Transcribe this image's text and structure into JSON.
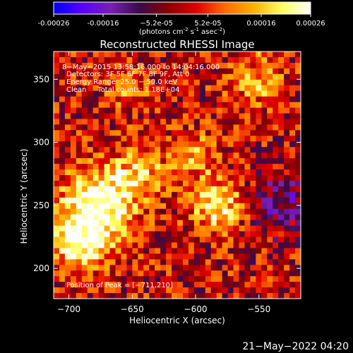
{
  "colorbar": {
    "tick_labels": [
      "-0.00026",
      "-0.00016",
      "−5.2e-05",
      "5.2e-05",
      "0.00016",
      "0.00026"
    ],
    "tick_values": [
      -0.00026,
      -0.00016,
      -5.2e-05,
      5.2e-05,
      0.00016,
      0.00026
    ],
    "range": [
      -0.00026,
      0.00026
    ],
    "unit_prefix": "(photons cm",
    "unit_exp1": "-2",
    "unit_mid": " s",
    "unit_exp2": "-1",
    "unit_suffix": " asec",
    "unit_exp3": "-2",
    "unit_close": ")",
    "colors": [
      "#0000ff",
      "#5a00ff",
      "#7a1fb0",
      "#3a0a4a",
      "#8b0000",
      "#e00000",
      "#ff6a00",
      "#ffb000",
      "#ffff60",
      "#ffffff"
    ]
  },
  "chart_data": {
    "type": "heatmap",
    "title": "Reconstructed RHESSI Image",
    "xlabel": "Heliocentric X (arcsec)",
    "ylabel": "Heliocentric Y (arcsec)",
    "xlim": [
      -712,
      -517
    ],
    "ylim": [
      176,
      372
    ],
    "x_ticks": [
      -700,
      -650,
      -600,
      -550
    ],
    "y_ticks": [
      200,
      250,
      300,
      350
    ],
    "annotations": [
      "8−May−2015 13:58:16.000 to 14:04:16.000",
      "Detectors: 3F 5F 6F 7F 8F 9F, Att 0",
      "Energy Range: 25.0 − 50.0 keV",
      "Clean     Total counts: 1.18E+04"
    ],
    "peak_label": "Position of Peak = [−711,210]",
    "peak": [
      -711,
      210
    ],
    "grid": false
  },
  "footer": {
    "timestamp": "21−May−2022 04:20"
  }
}
